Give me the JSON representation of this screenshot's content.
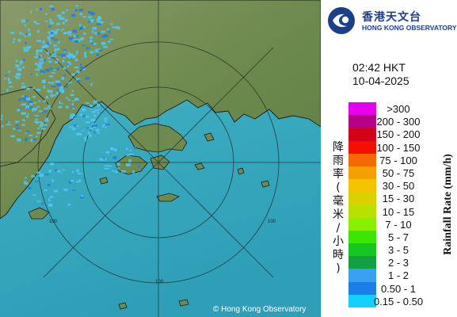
{
  "logo": {
    "name_zh": "香港天文台",
    "name_en": "HONG KONG OBSERVATORY",
    "colors": [
      "#1b3f8b",
      "#ffffff"
    ],
    "icon": "hko-logo-icon"
  },
  "timestamp": {
    "time": "02:42 HKT",
    "date": "10-04-2025"
  },
  "legend": {
    "title_en": "Rainfall Rate (mm/h)",
    "title_zh": "降雨率(毫米/小時)",
    "items": [
      {
        "label": ">300",
        "color": "#e800e8"
      },
      {
        "label": "200 - 300",
        "color": "#b40086"
      },
      {
        "label": "150 - 200",
        "color": "#d4001a"
      },
      {
        "label": "100 - 150",
        "color": "#f41000"
      },
      {
        "label": "75 - 100",
        "color": "#f46a00"
      },
      {
        "label": "50 - 75",
        "color": "#f4a000"
      },
      {
        "label": "30 - 50",
        "color": "#f4c400"
      },
      {
        "label": "15 - 30",
        "color": "#dcd000"
      },
      {
        "label": "10 - 15",
        "color": "#b8e000"
      },
      {
        "label": "7 - 10",
        "color": "#88f000"
      },
      {
        "label": "5 - 7",
        "color": "#38e800"
      },
      {
        "label": "3 - 5",
        "color": "#14c820"
      },
      {
        "label": "2 - 3",
        "color": "#14a040"
      },
      {
        "label": "1 - 2",
        "color": "#3aa0f0"
      },
      {
        "label": "0.50 - 1",
        "color": "#1c7ee8"
      },
      {
        "label": "0.15 - 0.50",
        "color": "#14d0ff"
      }
    ]
  },
  "map": {
    "range_ring_label": "100",
    "sea_color": "#3aaabf",
    "land_color": "#6e8a4e",
    "rain_color": "#4cc6f5",
    "credit": "© Hong Kong Observatory"
  }
}
